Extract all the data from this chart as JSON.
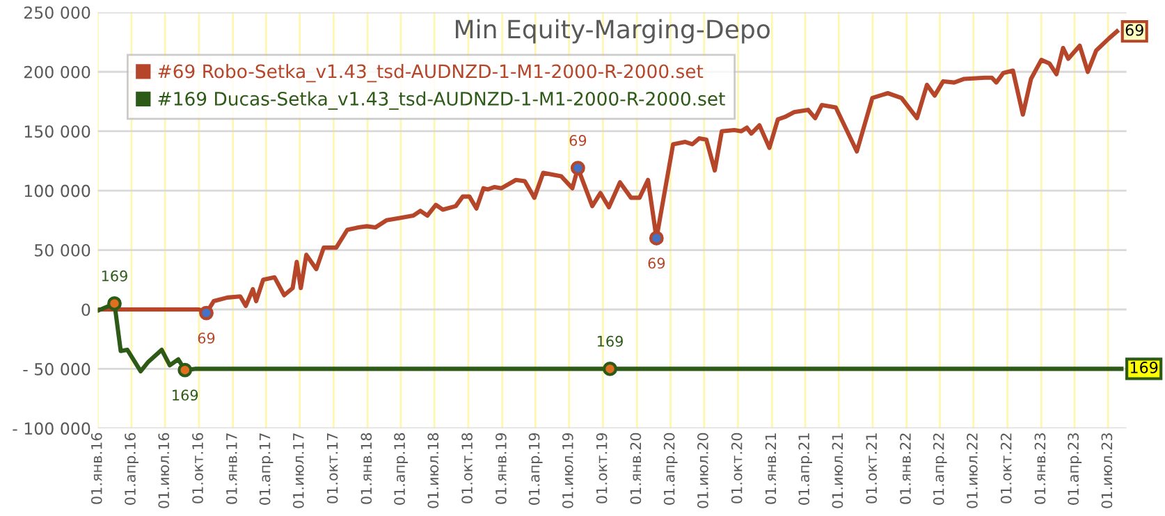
{
  "chart_data": {
    "type": "line",
    "title": "Min Equity-Marging-Depo",
    "legend": "top left",
    "grid": true,
    "line_style": "solid",
    "marker": "none",
    "ylim": [
      -100000,
      250000
    ],
    "yticks": [
      {
        "value": -100000,
        "label": "- 100 000"
      },
      {
        "value": -50000,
        "label": "- 50 000"
      },
      0,
      {
        "value": 50000,
        "label": "50 000"
      },
      {
        "value": 100000,
        "label": "100 000"
      },
      {
        "value": 150000,
        "label": "150 000"
      },
      {
        "value": 200000,
        "label": "200 000"
      },
      {
        "value": 250000,
        "label": "250 000"
      }
    ],
    "xlim": [
      "2016-01-01",
      "2023-08-20"
    ],
    "xticks": [
      {
        "value": "2016-01-01",
        "label": "01.янв.16"
      },
      {
        "value": "2016-04-01",
        "label": "01.апр.16"
      },
      {
        "value": "2016-07-01",
        "label": "01.июл.16"
      },
      {
        "value": "2016-10-01",
        "label": "01.окт.16"
      },
      {
        "value": "2017-01-01",
        "label": "01.янв.17"
      },
      {
        "value": "2017-04-01",
        "label": "01.апр.17"
      },
      {
        "value": "2017-07-01",
        "label": "01.июл.17"
      },
      {
        "value": "2017-10-01",
        "label": "01.окт.17"
      },
      {
        "value": "2018-01-01",
        "label": "01.янв.18"
      },
      {
        "value": "2018-04-01",
        "label": "01.апр.18"
      },
      {
        "value": "2018-07-01",
        "label": "01.июл.18"
      },
      {
        "value": "2018-10-01",
        "label": "01.окт.18"
      },
      {
        "value": "2019-01-01",
        "label": "01.янв.19"
      },
      {
        "value": "2019-04-01",
        "label": "01.апр.19"
      },
      {
        "value": "2019-07-01",
        "label": "01.июл.19"
      },
      {
        "value": "2019-10-01",
        "label": "01.окт.19"
      },
      {
        "value": "2020-01-01",
        "label": "01.янв.20"
      },
      {
        "value": "2020-04-01",
        "label": "01.апр.20"
      },
      {
        "value": "2020-07-01",
        "label": "01.июл.20"
      },
      {
        "value": "2020-10-01",
        "label": "01.окт.20"
      },
      {
        "value": "2021-01-01",
        "label": "01.янв.21"
      },
      {
        "value": "2021-04-01",
        "label": "01.апр.21"
      },
      {
        "value": "2021-07-01",
        "label": "01.июл.21"
      },
      {
        "value": "2021-10-01",
        "label": "01.окт.21"
      },
      {
        "value": "2022-01-01",
        "label": "01.янв.22"
      },
      {
        "value": "2022-04-01",
        "label": "01.апр.22"
      },
      {
        "value": "2022-07-01",
        "label": "01.июл.22"
      },
      {
        "value": "2022-10-01",
        "label": "01.окт.22"
      },
      {
        "value": "2023-01-01",
        "label": "01.янв.23"
      },
      {
        "value": "2023-04-01",
        "label": "01.апр.23"
      },
      {
        "value": "2023-07-01",
        "label": "01.июл.23"
      }
    ],
    "series": [
      {
        "name": "#69 Robo-Setka_v1.43_tsd-AUDNZD-1-M1-2000-R-2000.set",
        "color": "#b5462a",
        "x": [
          "2016-01-01",
          "2016-10-01",
          "2016-10-21",
          "2016-11-10",
          "2016-12-17",
          "2017-01-21",
          "2017-02-05",
          "2017-02-24",
          "2017-03-05",
          "2017-03-24",
          "2017-04-24",
          "2017-05-20",
          "2017-06-12",
          "2017-06-23",
          "2017-07-04",
          "2017-07-19",
          "2017-08-15",
          "2017-09-04",
          "2017-10-08",
          "2017-11-07",
          "2017-12-07",
          "2017-12-30",
          "2018-01-22",
          "2018-02-21",
          "2018-03-29",
          "2018-05-05",
          "2018-05-24",
          "2018-06-12",
          "2018-07-05",
          "2018-07-24",
          "2018-08-28",
          "2018-09-16",
          "2018-10-04",
          "2018-10-23",
          "2018-11-11",
          "2018-11-23",
          "2018-12-11",
          "2018-12-30",
          "2019-02-07",
          "2019-03-03",
          "2019-03-29",
          "2019-04-22",
          "2019-06-10",
          "2019-07-10",
          "2019-07-25",
          "2019-09-02",
          "2019-09-24",
          "2019-10-17",
          "2019-11-16",
          "2019-12-16",
          "2020-01-08",
          "2020-01-31",
          "2020-02-23",
          "2020-04-08",
          "2020-05-11",
          "2020-05-30",
          "2020-06-18",
          "2020-07-07",
          "2020-07-30",
          "2020-08-18",
          "2020-09-21",
          "2020-10-10",
          "2020-10-25",
          "2020-11-06",
          "2020-11-28",
          "2020-12-25",
          "2021-01-17",
          "2021-02-05",
          "2021-03-02",
          "2021-04-09",
          "2021-04-28",
          "2021-05-16",
          "2021-06-23",
          "2021-08-19",
          "2021-09-30",
          "2021-11-11",
          "2021-12-18",
          "2022-01-29",
          "2022-02-25",
          "2022-03-18",
          "2022-04-10",
          "2022-05-10",
          "2022-06-06",
          "2022-08-01",
          "2022-08-20",
          "2022-09-01",
          "2022-09-20",
          "2022-10-16",
          "2022-11-12",
          "2022-12-04",
          "2023-01-01",
          "2023-01-23",
          "2023-02-11",
          "2023-03-01",
          "2023-03-15",
          "2023-04-15",
          "2023-05-07",
          "2023-05-30",
          "2023-07-03",
          "2023-07-25"
        ],
        "values": [
          0,
          0,
          -3000,
          7000,
          10000,
          11000,
          3000,
          17000,
          7000,
          25000,
          27000,
          12000,
          18000,
          40000,
          18000,
          46000,
          34000,
          52000,
          52000,
          67000,
          69000,
          70000,
          69000,
          75000,
          77000,
          79000,
          83000,
          79000,
          88000,
          84000,
          87000,
          95000,
          95000,
          85000,
          102000,
          101000,
          103000,
          102000,
          109000,
          108000,
          94000,
          115000,
          112000,
          102000,
          119000,
          87000,
          98000,
          86000,
          107000,
          94000,
          94000,
          109000,
          60000,
          139000,
          141000,
          139000,
          144000,
          143000,
          117000,
          150000,
          151000,
          150000,
          153000,
          148000,
          155000,
          136000,
          160000,
          162000,
          166000,
          168000,
          161000,
          172000,
          170000,
          133000,
          178000,
          182000,
          178000,
          161000,
          189000,
          180000,
          192000,
          191000,
          194000,
          195000,
          195000,
          191000,
          199000,
          201000,
          164000,
          194000,
          210000,
          207000,
          198000,
          220000,
          211000,
          222000,
          200000,
          218000,
          228000,
          234000
        ]
      },
      {
        "name": "#169 Ducas-Setka_v1.43_tsd-AUDNZD-1-M1-2000-R-2000.set",
        "color": "#2d5a17",
        "x": [
          "2016-01-01",
          "2016-02-15",
          "2016-03-03",
          "2016-03-21",
          "2016-04-26",
          "2016-05-17",
          "2016-06-22",
          "2016-07-14",
          "2016-08-06",
          "2016-08-24",
          "2016-09-20",
          "2019-10-20",
          "2023-08-06"
        ],
        "values": [
          -1000,
          5000,
          -35000,
          -34000,
          -52000,
          -44000,
          -34000,
          -47000,
          -42000,
          -51000,
          -50000,
          -50000,
          -50000
        ]
      }
    ],
    "annotations": [
      {
        "text": "69",
        "x": "2016-10-21",
        "y": -3000
      },
      {
        "text": "69",
        "x": "2019-07-25",
        "y": 119000
      },
      {
        "text": "69",
        "x": "2020-02-23",
        "y": 60000
      },
      {
        "text": "69",
        "x": "2023-07-25",
        "y": 234000
      },
      {
        "text": "169",
        "x": "2016-02-15",
        "y": 5000
      },
      {
        "text": "169",
        "x": "2016-08-24",
        "y": -51000
      },
      {
        "text": "169",
        "x": "2019-10-20",
        "y": -50000
      },
      {
        "text": "169",
        "x": "2023-08-06",
        "y": -50000
      }
    ]
  }
}
